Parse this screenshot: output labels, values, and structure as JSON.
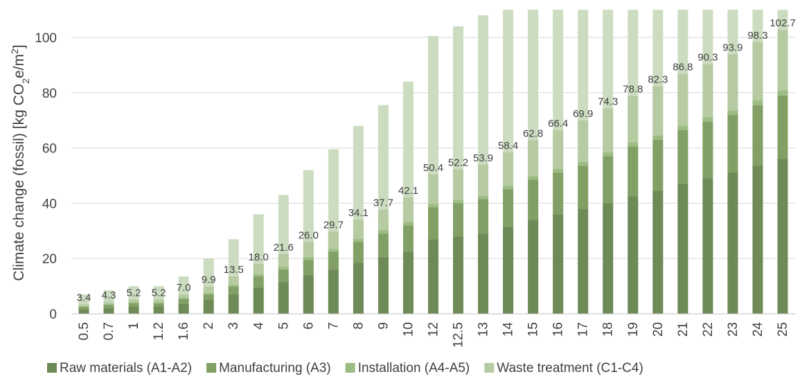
{
  "chart_data": {
    "type": "bar",
    "stacked": true,
    "categories": [
      "0.5",
      "0.7",
      "1",
      "1.2",
      "1.6",
      "2",
      "3",
      "4",
      "5",
      "6",
      "7",
      "8",
      "9",
      "10",
      "12",
      "12.5",
      "13",
      "14",
      "15",
      "16",
      "17",
      "18",
      "19",
      "20",
      "21",
      "22",
      "23",
      "24",
      "25"
    ],
    "series": [
      {
        "name": "Raw materials (A1-A2)",
        "color": "#6e8a57",
        "values": [
          1.5,
          2.0,
          2.5,
          2.5,
          3.5,
          5.0,
          7.0,
          9.5,
          11.5,
          14.0,
          16.0,
          18.5,
          20.5,
          22.5,
          27.0,
          28.0,
          29.0,
          31.5,
          34.0,
          36.0,
          38.0,
          40.0,
          42.5,
          44.5,
          47.0,
          49.0,
          51.0,
          53.5,
          56.0
        ]
      },
      {
        "name": "Manufacturing (A3)",
        "color": "#82a065",
        "values": [
          1.0,
          1.2,
          1.3,
          1.3,
          1.8,
          2.0,
          2.8,
          4.0,
          4.5,
          5.5,
          6.5,
          7.5,
          8.5,
          9.5,
          11.5,
          12.0,
          12.5,
          13.5,
          14.5,
          15.0,
          15.5,
          17.0,
          18.0,
          18.5,
          19.5,
          20.5,
          21.0,
          22.0,
          23.0
        ]
      },
      {
        "name": "Installation (A4-A5)",
        "color": "#9cbc83",
        "values": [
          0.3,
          0.3,
          0.4,
          0.4,
          0.5,
          0.5,
          0.7,
          0.8,
          1.0,
          1.0,
          1.0,
          1.1,
          1.2,
          1.2,
          1.2,
          1.2,
          1.2,
          1.3,
          1.3,
          1.4,
          1.4,
          1.4,
          1.5,
          1.5,
          1.5,
          1.6,
          1.6,
          1.7,
          1.8
        ]
      },
      {
        "name": "Waste treatment (C1-C4)",
        "color": "#b6cba2",
        "values": [
          0.6,
          0.8,
          1.0,
          1.0,
          1.2,
          2.4,
          3.0,
          3.7,
          4.6,
          5.5,
          6.2,
          7.0,
          7.5,
          8.9,
          10.7,
          11.0,
          11.2,
          12.1,
          13.0,
          14.0,
          15.0,
          15.9,
          16.8,
          17.8,
          18.8,
          19.2,
          20.3,
          21.1,
          21.9
        ]
      }
    ],
    "totals": [
      3.4,
      4.3,
      5.2,
      5.2,
      7.0,
      9.9,
      13.5,
      18.0,
      21.6,
      26.0,
      29.7,
      34.1,
      37.7,
      42.1,
      50.4,
      52.2,
      53.9,
      58.4,
      62.8,
      66.4,
      69.9,
      74.3,
      78.8,
      82.3,
      86.8,
      90.3,
      93.9,
      98.3,
      102.7
    ],
    "total_labels": [
      "3.4",
      "4.3",
      "5.2",
      "5.2",
      "7.0",
      "9.9",
      "13.5",
      "18.0",
      "21.6",
      "26.0",
      "29.7",
      "34.1",
      "37.7",
      "42.1",
      "50.4",
      "52.2",
      "53.9",
      "58.4",
      "62.8",
      "66.4",
      "69.9",
      "74.3",
      "78.8",
      "82.3",
      "86.8",
      "90.3",
      "93.9",
      "98.3",
      "102.7"
    ],
    "background_total": {
      "color": "#ccdcc0",
      "values": [
        7.0,
        8.5,
        10.0,
        10.0,
        13.5,
        20.0,
        27.0,
        36.0,
        43.0,
        52.0,
        59.5,
        68.0,
        75.5,
        84.0,
        100.5,
        104.0,
        108.0,
        110,
        110,
        110,
        110,
        110,
        110,
        110,
        110,
        110,
        110,
        110,
        110
      ]
    },
    "ylabel_main": "Climate change (fossil) [kg CO",
    "ylabel_sub1": "2",
    "ylabel_mid": "e/m",
    "ylabel_sup": "2",
    "ylabel_end": "]",
    "xlabel": "",
    "ylim": [
      0,
      110
    ],
    "yticks": [
      0,
      20,
      40,
      60,
      80,
      100
    ],
    "grid": true,
    "legend_position": "bottom"
  }
}
